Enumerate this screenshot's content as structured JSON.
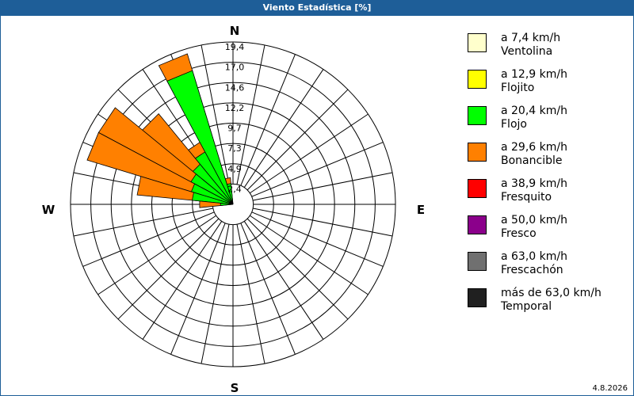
{
  "title": "Viento Estadística [%]",
  "footer_date": "4.8.2026",
  "chart_data": {
    "type": "windrose",
    "title": "Viento Estadística [%]",
    "cardinals": [
      "N",
      "E",
      "S",
      "W"
    ],
    "ring_ticks": [
      "2,4",
      "4,9",
      "7,3",
      "9,7",
      "12,2",
      "14,6",
      "17,0",
      "19,4"
    ],
    "rmax": 19.4,
    "sectors": 32,
    "legend": [
      {
        "speed": "a 7,4 km/h",
        "name": "Ventolina",
        "color": "#ffffcc"
      },
      {
        "speed": "a 12,9 km/h",
        "name": "Flojito",
        "color": "#ffff00"
      },
      {
        "speed": "a 20,4 km/h",
        "name": "Flojo",
        "color": "#00ff00"
      },
      {
        "speed": "a 29,6 km/h",
        "name": "Bonancible",
        "color": "#ff8000"
      },
      {
        "speed": "a 38,9 km/h",
        "name": "Fresquito",
        "color": "#ff0000"
      },
      {
        "speed": "a 50,0 km/h",
        "name": "Fresco",
        "color": "#8b008b"
      },
      {
        "speed": "a 63,0 km/h",
        "name": "Frescachón",
        "color": "#707070"
      },
      {
        "speed": "más de 63,0 km/h",
        "name": "Temporal",
        "color": "#202020"
      }
    ],
    "bars": [
      {
        "direction": 348.75,
        "cumulative": {
          "Flojo": 2.5,
          "Bonancible": 3.2
        }
      },
      {
        "direction": 337.5,
        "cumulative": {
          "Flojo": 16.7,
          "Bonancible": 18.8
        }
      },
      {
        "direction": 326.25,
        "cumulative": {
          "Flojo": 7.1,
          "Bonancible": 8.4
        }
      },
      {
        "direction": 315,
        "cumulative": {
          "Flojo": 6.2,
          "Bonancible": 14.0
        }
      },
      {
        "direction": 303.75,
        "cumulative": {
          "Flojo": 5.7,
          "Bonancible": 18.2
        }
      },
      {
        "direction": 292.5,
        "cumulative": {
          "Flojo": 5.2,
          "Bonancible": 18.2
        }
      },
      {
        "direction": 281.25,
        "cumulative": {
          "Flojo": 4.9,
          "Bonancible": 11.5
        }
      },
      {
        "direction": 270,
        "cumulative": {
          "Flojo": 1.5,
          "Bonancible": 4.0
        }
      }
    ]
  }
}
